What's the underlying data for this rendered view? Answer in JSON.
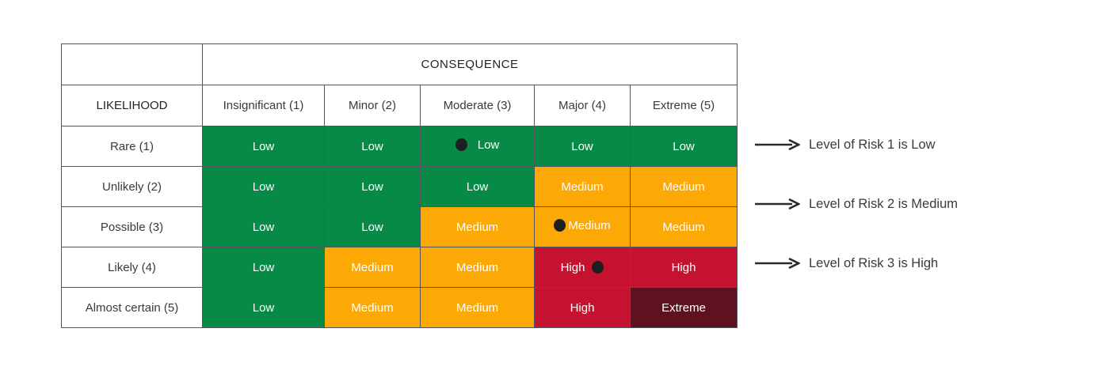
{
  "figure": {
    "consequence_title": "CONSEQUENCE",
    "likelihood_title": "LIKELIHOOD",
    "columns": [
      "Insignificant (1)",
      "Minor (2)",
      "Moderate (3)",
      "Major (4)",
      "Extreme (5)"
    ],
    "rows": [
      {
        "label": "Rare (1)",
        "cells": [
          {
            "label": "Low",
            "level": "low"
          },
          {
            "label": "Low",
            "level": "low"
          },
          {
            "label": "Low",
            "level": "low",
            "marker": "before"
          },
          {
            "label": "Low",
            "level": "low"
          },
          {
            "label": "Low",
            "level": "low"
          }
        ]
      },
      {
        "label": "Unlikely (2)",
        "cells": [
          {
            "label": "Low",
            "level": "low"
          },
          {
            "label": "Low",
            "level": "low"
          },
          {
            "label": "Low",
            "level": "low"
          },
          {
            "label": "Medium",
            "level": "medium"
          },
          {
            "label": "Medium",
            "level": "medium"
          }
        ]
      },
      {
        "label": "Possible (3)",
        "cells": [
          {
            "label": "Low",
            "level": "low"
          },
          {
            "label": "Low",
            "level": "low"
          },
          {
            "label": "Medium",
            "level": "medium"
          },
          {
            "label": "Medium",
            "level": "medium",
            "marker": "before-tight"
          },
          {
            "label": "Medium",
            "level": "medium"
          }
        ]
      },
      {
        "label": "Likely (4)",
        "cells": [
          {
            "label": "Low",
            "level": "low"
          },
          {
            "label": "Medium",
            "level": "medium"
          },
          {
            "label": "Medium",
            "level": "medium"
          },
          {
            "label": "High",
            "level": "high",
            "marker": "after"
          },
          {
            "label": "High",
            "level": "high"
          }
        ]
      },
      {
        "label": "Almost certain (5)",
        "cells": [
          {
            "label": "Low",
            "level": "low"
          },
          {
            "label": "Medium",
            "level": "medium"
          },
          {
            "label": "Medium",
            "level": "medium"
          },
          {
            "label": "High",
            "level": "high"
          },
          {
            "label": "Extreme",
            "level": "extreme"
          }
        ]
      }
    ],
    "annotations": [
      {
        "text": "Level of Risk 1 is Low"
      },
      {
        "text": "Level of Risk 2 is Medium"
      },
      {
        "text": "Level of Risk 3 is High"
      }
    ],
    "colors": {
      "low": "#068A46",
      "medium": "#FCA805",
      "high": "#C51230",
      "extreme": "#5E1220",
      "border": "#54555A",
      "marker": "#1F1F1F"
    }
  }
}
